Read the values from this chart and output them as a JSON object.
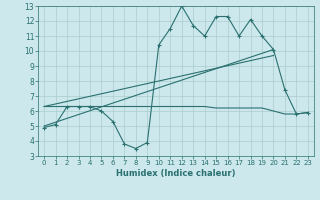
{
  "xlabel": "Humidex (Indice chaleur)",
  "bg_color": "#cce8ec",
  "grid_color": "#aacccc",
  "line_color": "#2a7070",
  "xlim": [
    -0.5,
    23.5
  ],
  "ylim": [
    3,
    13
  ],
  "xticks": [
    0,
    1,
    2,
    3,
    4,
    5,
    6,
    7,
    8,
    9,
    10,
    11,
    12,
    13,
    14,
    15,
    16,
    17,
    18,
    19,
    20,
    21,
    22,
    23
  ],
  "yticks": [
    3,
    4,
    5,
    6,
    7,
    8,
    9,
    10,
    11,
    12,
    13
  ],
  "line1_x": [
    0,
    1,
    2,
    3,
    4,
    5,
    6,
    7,
    8,
    9,
    10,
    11,
    12,
    13,
    14,
    15,
    16,
    17,
    18,
    19,
    20,
    21,
    22,
    23
  ],
  "line1_y": [
    4.9,
    5.1,
    6.3,
    6.3,
    6.3,
    6.0,
    5.3,
    3.8,
    3.5,
    3.9,
    10.4,
    11.5,
    13,
    11.7,
    11,
    12.3,
    12.3,
    11,
    12.1,
    11,
    10.1,
    7.4,
    5.8,
    5.9
  ],
  "line2_x": [
    0,
    20
  ],
  "line2_y": [
    5.0,
    10.1
  ],
  "line3_x": [
    0,
    20
  ],
  "line3_y": [
    6.3,
    9.7
  ],
  "line4_x": [
    0,
    1,
    2,
    3,
    4,
    5,
    6,
    7,
    8,
    9,
    10,
    11,
    12,
    13,
    14,
    15,
    16,
    17,
    18,
    19,
    21,
    22,
    23
  ],
  "line4_y": [
    6.3,
    6.3,
    6.3,
    6.3,
    6.3,
    6.3,
    6.3,
    6.3,
    6.3,
    6.3,
    6.3,
    6.3,
    6.3,
    6.3,
    6.3,
    6.2,
    6.2,
    6.2,
    6.2,
    6.2,
    5.8,
    5.8,
    5.9
  ]
}
